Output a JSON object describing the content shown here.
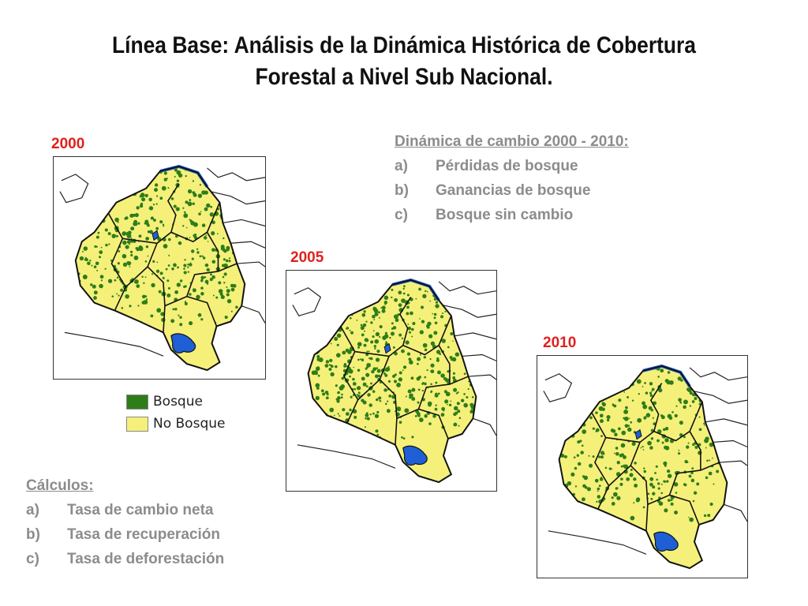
{
  "slide": {
    "title": "Línea Base: Análisis de la Dinámica Histórica de Cobertura Forestal a Nivel Sub Nacional."
  },
  "maps": [
    {
      "year": "2000"
    },
    {
      "year": "2005"
    },
    {
      "year": "2010"
    }
  ],
  "legend": {
    "items": [
      {
        "label": "Bosque",
        "color": "#2e7d1a"
      },
      {
        "label": "No Bosque",
        "color": "#f5f07a"
      }
    ]
  },
  "change_dynamics": {
    "heading": "Dinámica de cambio 2000 - 2010:",
    "items": [
      {
        "marker": "a)",
        "text": "Pérdidas de bosque"
      },
      {
        "marker": "b)",
        "text": "Ganancias de bosque"
      },
      {
        "marker": "c)",
        "text": "Bosque sin cambio"
      }
    ]
  },
  "calculations": {
    "heading": "Cálculos:",
    "items": [
      {
        "marker": "a)",
        "text": "Tasa de cambio neta"
      },
      {
        "marker": "b)",
        "text": "Tasa de recuperación"
      },
      {
        "marker": "c)",
        "text": "Tasa de deforestación"
      }
    ]
  },
  "colors": {
    "forest": "#2e7d1a",
    "non_forest": "#f5f07a",
    "water": "#1f5fd6",
    "year_label": "#e0201e"
  }
}
